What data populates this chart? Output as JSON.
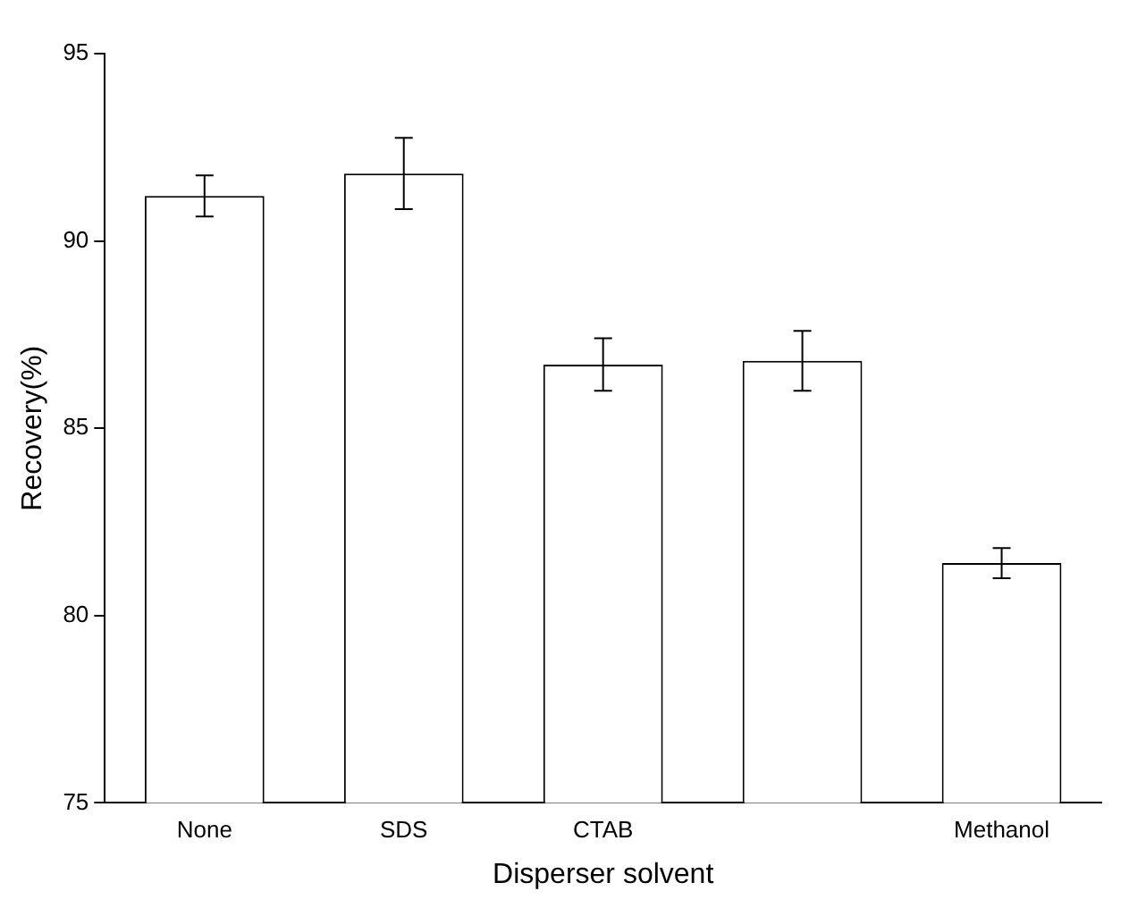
{
  "chart_data": {
    "type": "bar",
    "xlabel": "Disperser solvent",
    "ylabel": "Recovery(%)",
    "categories": [
      "None",
      "SDS",
      "CTAB",
      null,
      "Methanol"
    ],
    "values": [
      91.2,
      91.8,
      86.7,
      86.8,
      81.4
    ],
    "errors": [
      0.55,
      0.95,
      0.7,
      0.8,
      0.4
    ],
    "color": "#000000",
    "ylim": [
      75,
      95
    ],
    "yticks": [
      75,
      80,
      85,
      90,
      95
    ],
    "grid": false,
    "legend": false
  }
}
